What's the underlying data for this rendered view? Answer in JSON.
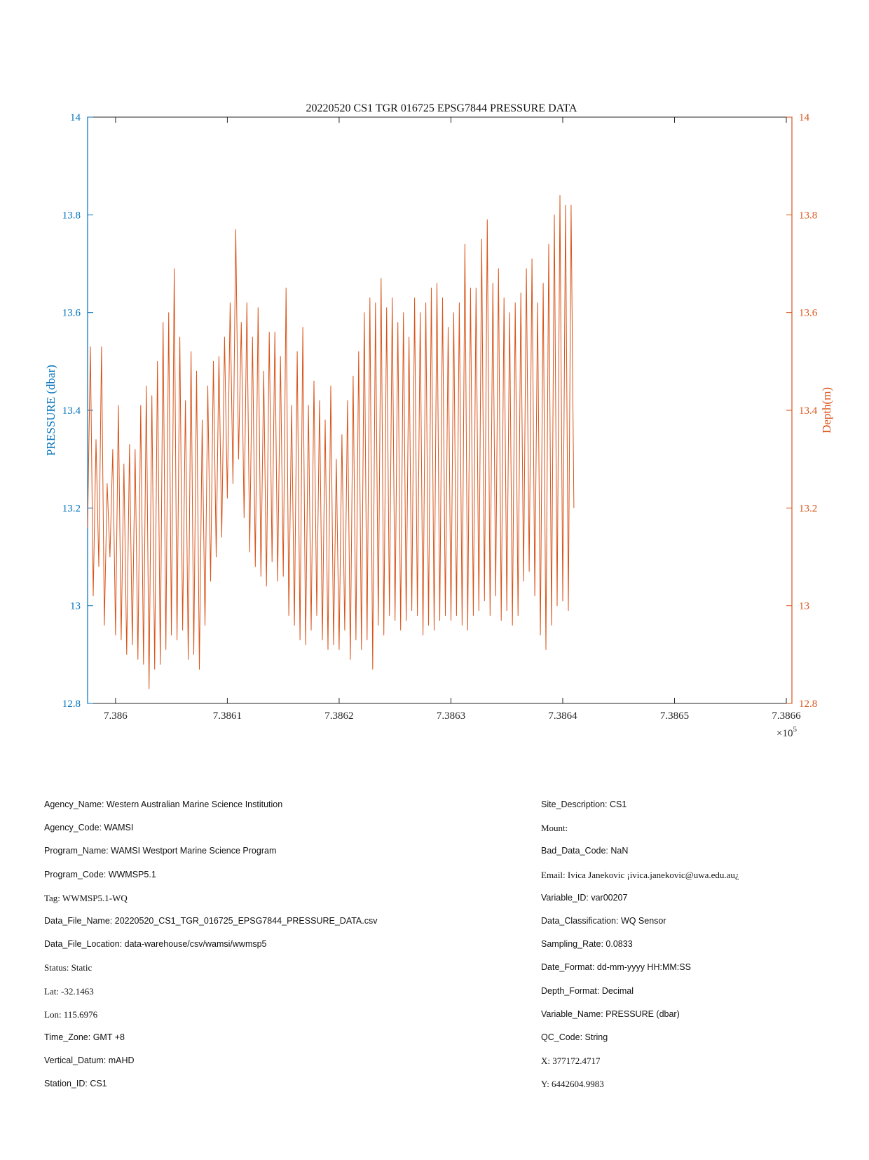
{
  "chart_data": {
    "type": "line",
    "title": "20220520 CS1 TGR 016725 EPSG7844 PRESSURE DATA",
    "ylabel_left": "PRESSURE (dbar)",
    "ylabel_right": "Depth(m)",
    "xlabel": "",
    "x_exponent_label": "×10",
    "x_exponent_power": "5",
    "xlim": [
      738597.5,
      738660.5
    ],
    "ylim": [
      12.8,
      14.0
    ],
    "x_ticks": [
      738600,
      738610,
      738620,
      738630,
      738640,
      738650,
      738660
    ],
    "x_tick_labels": [
      "7.386",
      "7.3861",
      "7.3862",
      "7.3863",
      "7.3864",
      "7.3865",
      "7.3866"
    ],
    "y_ticks": [
      12.8,
      13.0,
      13.2,
      13.4,
      13.6,
      13.8,
      14.0
    ],
    "y_tick_labels": [
      "12.8",
      "13",
      "13.2",
      "13.4",
      "13.6",
      "13.8",
      "14"
    ],
    "grid": false,
    "colors": {
      "left_axis": "#0072BD",
      "right_axis": "#D95319",
      "line": "#D95319"
    },
    "series": [
      {
        "name": "",
        "x_start": 738597.5,
        "x_step": 0.25,
        "values": [
          13.16,
          13.53,
          13.02,
          13.34,
          13.08,
          13.53,
          12.96,
          13.25,
          13.1,
          13.32,
          12.94,
          13.41,
          12.93,
          13.29,
          12.9,
          13.33,
          12.92,
          13.32,
          12.89,
          13.41,
          12.88,
          13.45,
          12.83,
          13.43,
          12.87,
          13.5,
          12.88,
          13.58,
          12.91,
          13.6,
          12.94,
          13.69,
          12.93,
          13.55,
          12.95,
          13.42,
          12.89,
          13.52,
          12.9,
          13.48,
          12.87,
          13.38,
          12.96,
          13.45,
          13.05,
          13.5,
          13.1,
          13.51,
          13.14,
          13.55,
          13.22,
          13.62,
          13.25,
          13.77,
          13.3,
          13.58,
          13.18,
          13.62,
          13.11,
          13.55,
          13.08,
          13.61,
          13.06,
          13.48,
          13.04,
          13.56,
          13.09,
          13.56,
          13.05,
          13.51,
          13.06,
          13.65,
          12.98,
          13.41,
          12.96,
          13.52,
          12.93,
          13.57,
          12.92,
          13.41,
          12.95,
          13.46,
          12.98,
          13.42,
          12.93,
          13.38,
          12.91,
          13.45,
          12.92,
          13.3,
          12.91,
          13.35,
          12.95,
          13.42,
          12.89,
          13.47,
          12.93,
          13.52,
          12.91,
          13.6,
          12.93,
          13.63,
          12.87,
          13.62,
          12.96,
          13.67,
          12.94,
          13.61,
          12.98,
          13.63,
          12.97,
          13.58,
          12.95,
          13.6,
          12.97,
          13.55,
          12.99,
          13.63,
          12.98,
          13.6,
          12.94,
          13.62,
          12.96,
          13.65,
          12.95,
          13.66,
          12.97,
          13.63,
          12.98,
          13.57,
          12.97,
          13.6,
          12.98,
          13.62,
          12.96,
          13.74,
          12.95,
          13.65,
          12.98,
          13.65,
          12.99,
          13.75,
          13.01,
          13.79,
          12.98,
          13.66,
          13.02,
          13.69,
          12.97,
          13.63,
          12.99,
          13.6,
          12.96,
          13.62,
          12.98,
          13.64,
          13.05,
          13.69,
          13.07,
          13.71,
          13.02,
          13.62,
          12.94,
          13.66,
          12.91,
          13.74,
          12.96,
          13.8,
          13.0,
          13.84,
          13.01,
          13.82,
          12.99,
          13.82,
          13.2
        ]
      }
    ]
  },
  "metadata": {
    "left": [
      {
        "text": "Agency_Name: Western Australian Marine Science Institution",
        "style": "sans"
      },
      {
        "text": "Agency_Code: WAMSI",
        "style": "sans"
      },
      {
        "text": "Program_Name: WAMSI Westport Marine Science Program",
        "style": "sans"
      },
      {
        "text": "Program_Code: WWMSP5.1",
        "style": "sans"
      },
      {
        "text": "Tag: WWMSP5.1-WQ",
        "style": "serif"
      },
      {
        "text": "Data_File_Name: 20220520_CS1_TGR_016725_EPSG7844_PRESSURE_DATA.csv",
        "style": "sans"
      },
      {
        "text": "Data_File_Location: data-warehouse/csv/wamsi/wwmsp5",
        "style": "sans"
      },
      {
        "text": "Status: Static",
        "style": "serif"
      },
      {
        "text": "Lat: -32.1463",
        "style": "serif"
      },
      {
        "text": "Lon: 115.6976",
        "style": "serif"
      },
      {
        "text": "Time_Zone: GMT +8",
        "style": "sans"
      },
      {
        "text": "Vertical_Datum: mAHD",
        "style": "sans"
      },
      {
        "text": "Station_ID: CS1",
        "style": "sans"
      }
    ],
    "right": [
      {
        "text": "Site_Description: CS1",
        "style": "sans"
      },
      {
        "text": "Mount:",
        "style": "serif"
      },
      {
        "text": "Bad_Data_Code: NaN",
        "style": "sans"
      },
      {
        "text": "Email: Ivica Janekovic ¡ivica.janekovic@uwa.edu.au¿",
        "style": "serif"
      },
      {
        "text": "Variable_ID: var00207",
        "style": "sans"
      },
      {
        "text": "Data_Classification: WQ Sensor",
        "style": "sans"
      },
      {
        "text": "Sampling_Rate: 0.0833",
        "style": "sans"
      },
      {
        "text": "Date_Format: dd-mm-yyyy HH:MM:SS",
        "style": "sans"
      },
      {
        "text": "Depth_Format: Decimal",
        "style": "sans"
      },
      {
        "text": "Variable_Name: PRESSURE (dbar)",
        "style": "sans"
      },
      {
        "text": "QC_Code: String",
        "style": "sans"
      },
      {
        "text": "X: 377172.4717",
        "style": "serif"
      },
      {
        "text": "Y: 6442604.9983",
        "style": "serif"
      }
    ]
  }
}
